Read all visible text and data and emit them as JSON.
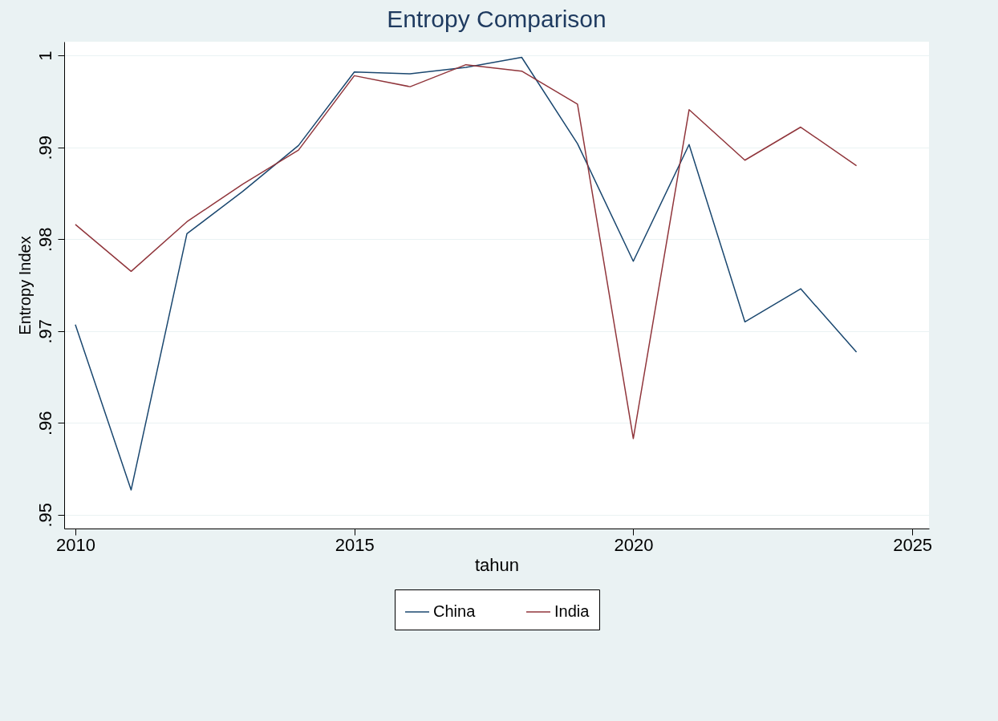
{
  "chart_data": {
    "type": "line",
    "title": "Entropy Comparison",
    "xlabel": "tahun",
    "ylabel": "Entropy Index",
    "x": [
      2010,
      2011,
      2012,
      2013,
      2014,
      2015,
      2016,
      2017,
      2018,
      2019,
      2020,
      2021,
      2022,
      2023,
      2024
    ],
    "series": [
      {
        "name": "China",
        "color": "#1a476f",
        "values": [
          0.9707,
          0.9527,
          0.9806,
          0.9852,
          0.9902,
          0.9982,
          0.998,
          0.9987,
          0.9998,
          0.9904,
          0.9776,
          0.9903,
          0.971,
          0.9746,
          0.9677
        ]
      },
      {
        "name": "India",
        "color": "#90353b",
        "values": [
          0.9816,
          0.9765,
          0.9819,
          0.986,
          0.9897,
          0.9978,
          0.9966,
          0.999,
          0.9983,
          0.9947,
          0.9583,
          0.9941,
          0.9886,
          0.9922,
          0.988
        ]
      }
    ],
    "xlim": [
      2009.8,
      2025.3
    ],
    "xticks": [
      2010,
      2015,
      2020,
      2025
    ],
    "ylim": [
      0.9485,
      1.0015
    ],
    "yticks": [
      {
        "value": 0.95,
        "label": ".95"
      },
      {
        "value": 0.96,
        "label": ".96"
      },
      {
        "value": 0.97,
        "label": ".97"
      },
      {
        "value": 0.98,
        "label": ".98"
      },
      {
        "value": 0.99,
        "label": ".99"
      },
      1
    ],
    "grid": "y",
    "legend": "bottom",
    "marker": "none",
    "line_style": "solid"
  }
}
